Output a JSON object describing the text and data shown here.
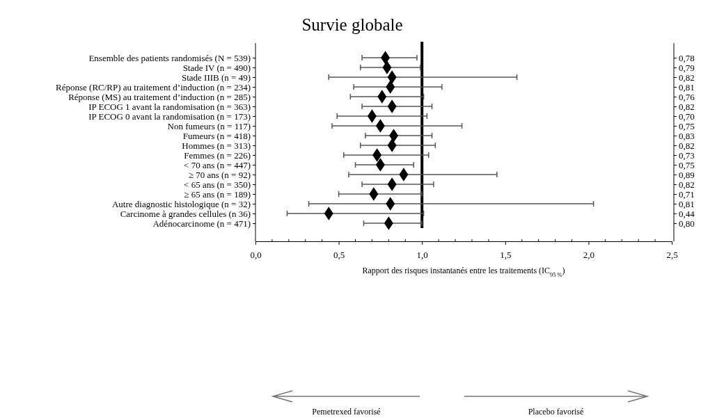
{
  "chart_data": {
    "type": "scatter",
    "orientation": "horizontal",
    "title": "Survie globale",
    "xlabel": "Rapport des risques instantanés entre les traitements (IC$_{95 %}$)",
    "categories": [
      "Ensemble des patients randomisés (N = 539)",
      "Stade IV (n = 490)",
      "Stade IIIB (n = 49)",
      "Réponse (RC/RP) au traitement d’induction (n = 234)",
      "Réponse (MS) au traitement d’induction (n = 285)",
      "IP ECOG 1 avant la randomisation (n = 363)",
      "IP ECOG 0 avant la randomisation (n = 173)",
      "Non fumeurs (n = 117)",
      "Fumeurs (n = 418)",
      "Hommes (n = 313)",
      "Femmes (n = 226)",
      "< 70 ans (n = 447)",
      "≥ 70 ans (n = 92)",
      "< 65 ans (n = 350)",
      "≥ 65 ans (n = 189)",
      "Autre diagnostic histologique (n = 32)",
      "Carcinome à grandes cellules (n 36)",
      "Adénocarcinome (n = 471)"
    ],
    "series": [
      {
        "color": "#000000",
        "values": [
          0.78,
          0.79,
          0.82,
          0.81,
          0.76,
          0.82,
          0.7,
          0.75,
          0.83,
          0.82,
          0.73,
          0.75,
          0.89,
          0.82,
          0.71,
          0.81,
          0.44,
          0.8
        ],
        "value_labels": [
          "0,78",
          "0,79",
          "0,82",
          "0,81",
          "0,76",
          "0,82",
          "0,70",
          "0,75",
          "0,83",
          "0,82",
          "0,73",
          "0,75",
          "0,89",
          "0,82",
          "0,71",
          "0,81",
          "0,44",
          "0,80"
        ],
        "errors": [
          [
            0.64,
            0.97
          ],
          [
            0.63,
            0.99
          ],
          [
            0.44,
            1.57
          ],
          [
            0.59,
            1.12
          ],
          [
            0.57,
            1.01
          ],
          [
            0.64,
            1.06
          ],
          [
            0.49,
            1.03
          ],
          [
            0.46,
            1.24
          ],
          [
            0.66,
            1.06
          ],
          [
            0.63,
            1.08
          ],
          [
            0.53,
            1.04
          ],
          [
            0.6,
            0.95
          ],
          [
            0.56,
            1.45
          ],
          [
            0.64,
            1.07
          ],
          [
            0.5,
            1.0
          ],
          [
            0.32,
            2.03
          ],
          [
            0.19,
            1.01
          ],
          [
            0.65,
            1.0
          ]
        ]
      }
    ],
    "marker": "diamond",
    "xlim": [
      0,
      2.5
    ],
    "xticks": [
      {
        "value": 0,
        "label": "0,0"
      },
      {
        "value": 0.5,
        "label": "0,5"
      },
      {
        "value": 1,
        "label": "1,0"
      },
      {
        "value": 1.5,
        "label": "1,5"
      },
      {
        "value": 2,
        "label": "2,0"
      },
      {
        "value": 2.5,
        "label": "2,5"
      }
    ],
    "ref_lines": [
      {
        "axis": "x",
        "value": 1,
        "color": "#000000"
      }
    ],
    "annotations": [
      "Pemetrexed favorisé",
      "Placebo favorisé"
    ]
  }
}
